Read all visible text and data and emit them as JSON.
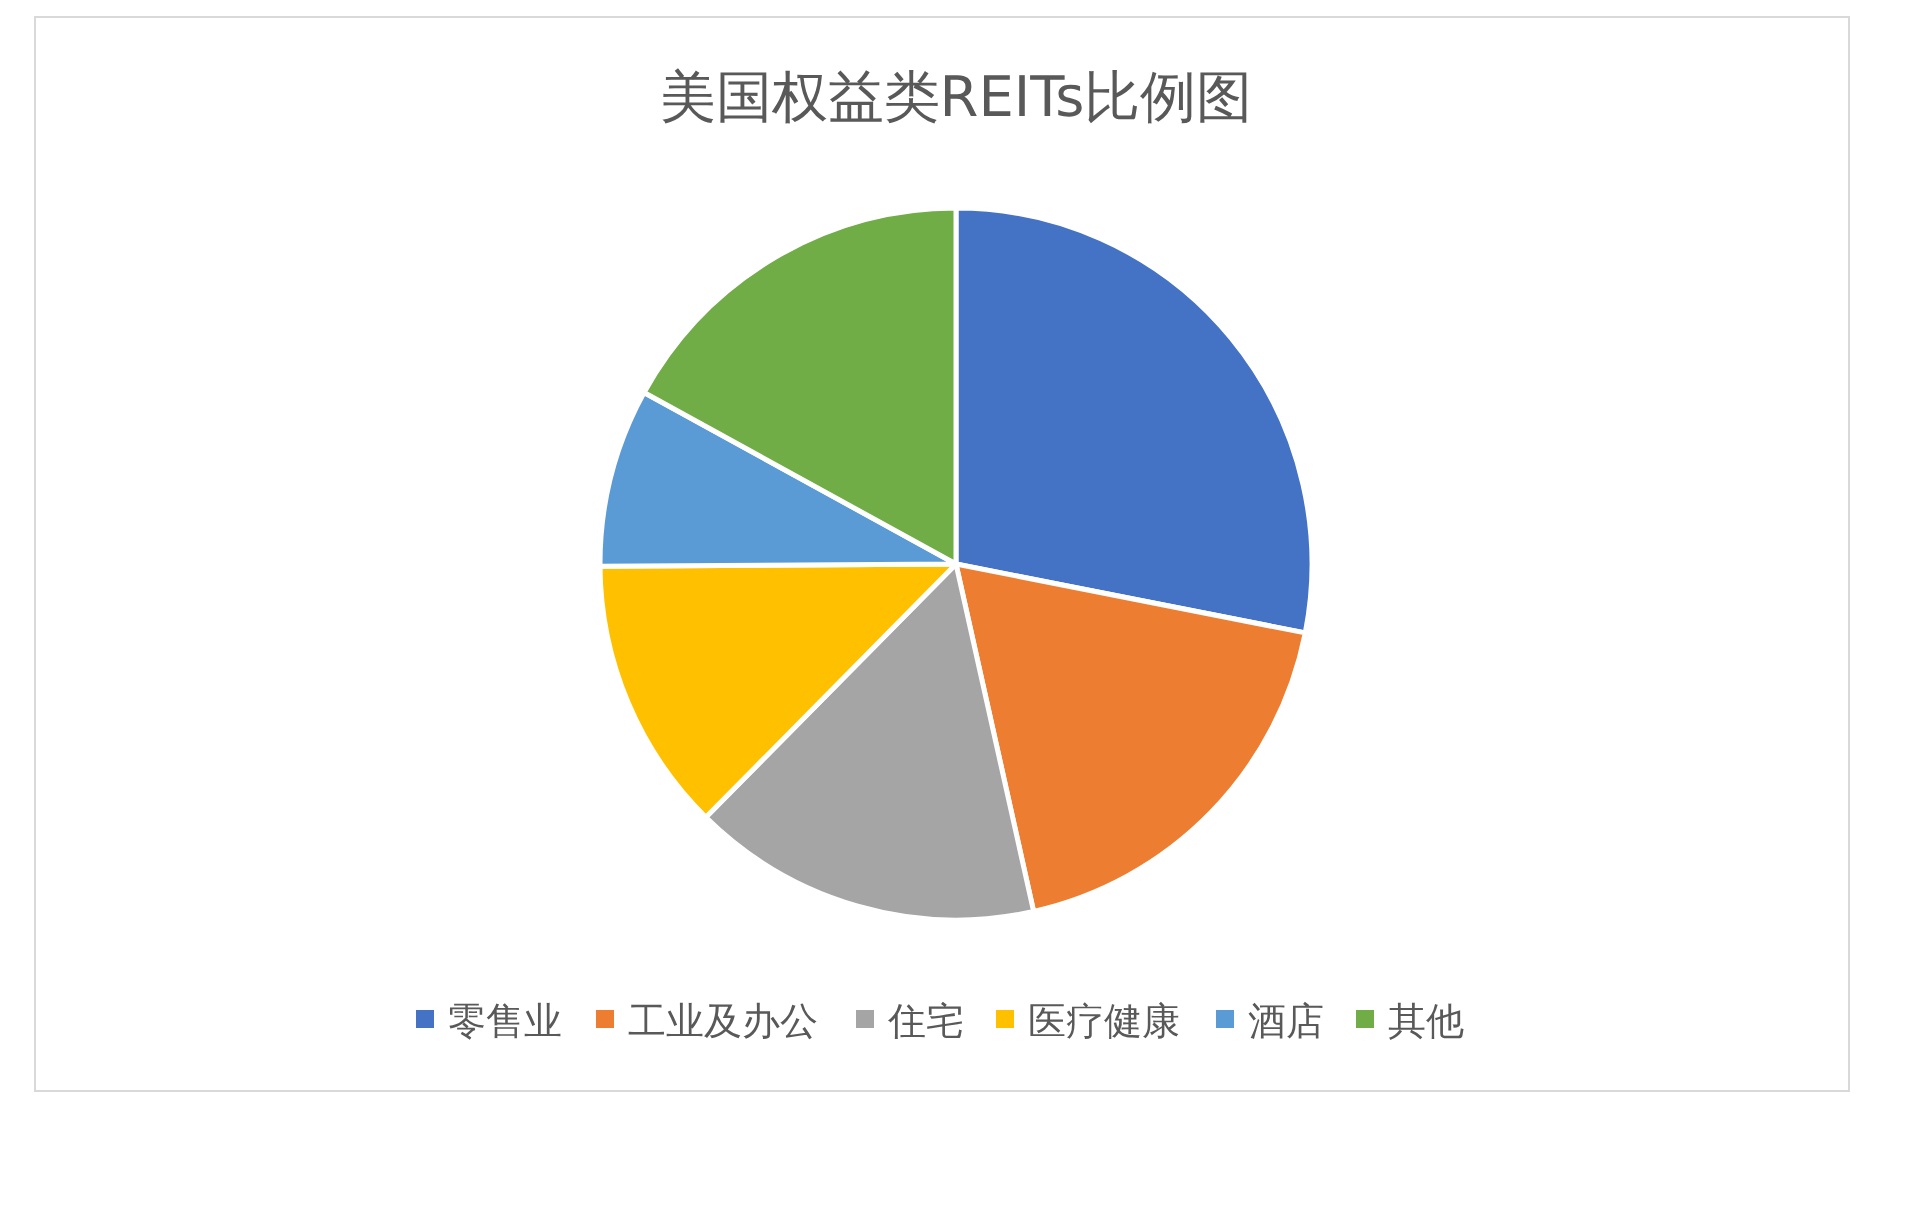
{
  "chart_data": {
    "type": "pie",
    "title": "美国权益类REITs比例图",
    "categories": [
      "零售业",
      "工业及办公",
      "住宅",
      "医疗健康",
      "酒店",
      "其他"
    ],
    "values": [
      28.1,
      18.4,
      15.9,
      12.5,
      8.1,
      17.0
    ],
    "colors": [
      "#4472c4",
      "#ed7d31",
      "#a5a5a5",
      "#ffc000",
      "#5b9bd5",
      "#70ad47"
    ],
    "legend": "bottom"
  }
}
